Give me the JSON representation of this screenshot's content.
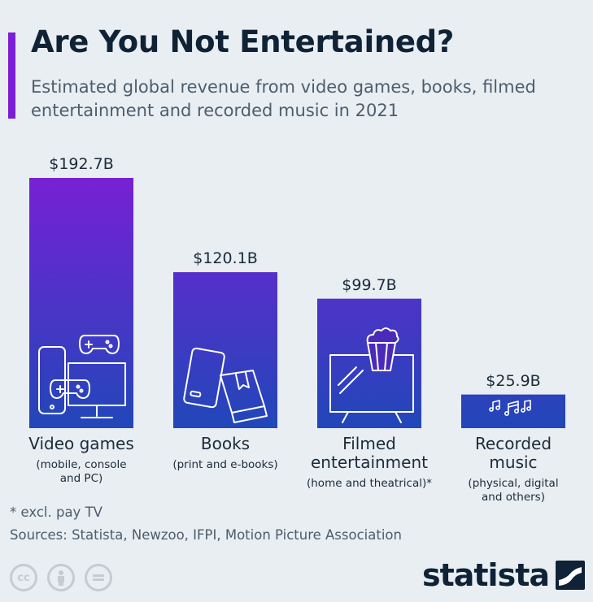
{
  "header": {
    "title": "Are You Not Entertained?",
    "subtitle": "Estimated global revenue from video games, books, filmed entertainment and recorded music in 2021"
  },
  "chart_data": {
    "type": "bar",
    "categories": [
      "Video games",
      "Books",
      "Filmed entertainment",
      "Recorded music"
    ],
    "category_notes": [
      "(mobile, console and PC)",
      "(print and e-books)",
      "(home and theatrical)*",
      "(physical, digital and others)"
    ],
    "values": [
      192.7,
      120.1,
      99.7,
      25.9
    ],
    "value_labels": [
      "$192.7B",
      "$120.1B",
      "$99.7B",
      "$25.9B"
    ],
    "unit": "billion U.S. dollars",
    "ylim": [
      0,
      192.7
    ],
    "grid": false,
    "legend": "none",
    "bar_icons": [
      "gaming-devices-icon",
      "books-icon",
      "tv-popcorn-icon",
      "music-notes-icon"
    ],
    "colors": {
      "gradient_top": "#7a1fd6",
      "gradient_bottom": "#1f48b8"
    }
  },
  "footer": {
    "footnote": "* excl. pay TV",
    "sources": "Sources: Statista, Newzoo, IFPI, Motion Picture Association",
    "logo_text": "statista",
    "cc_icons": [
      "cc-icon",
      "attribution-icon",
      "no-derivatives-icon"
    ]
  }
}
